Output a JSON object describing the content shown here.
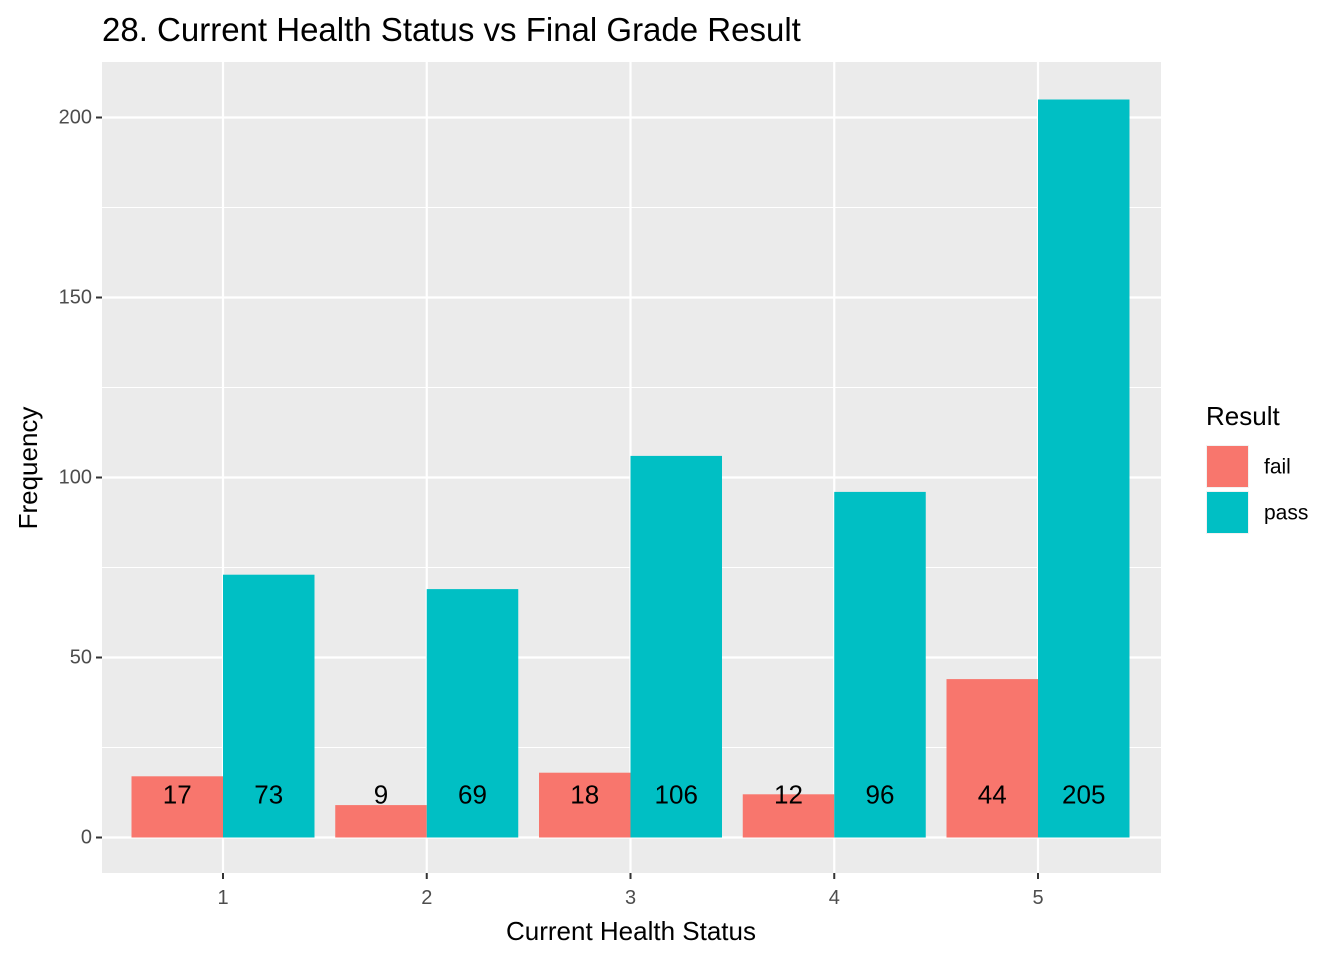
{
  "chart_data": {
    "type": "bar",
    "title": "28. Current Health Status vs Final Grade Result",
    "xlabel": "Current Health Status",
    "ylabel": "Frequency",
    "categories": [
      "1",
      "2",
      "3",
      "4",
      "5"
    ],
    "series": [
      {
        "name": "fail",
        "color": "#F8766D",
        "values": [
          17,
          9,
          18,
          12,
          44
        ]
      },
      {
        "name": "pass",
        "color": "#00BFC4",
        "values": [
          73,
          69,
          106,
          96,
          205
        ]
      }
    ],
    "ylim": [
      0,
      210
    ],
    "yticks": [
      0,
      50,
      100,
      150,
      200
    ],
    "grid": true,
    "legend": {
      "title": "Result",
      "position": "right"
    },
    "panel_background": "#EBEBEB"
  }
}
